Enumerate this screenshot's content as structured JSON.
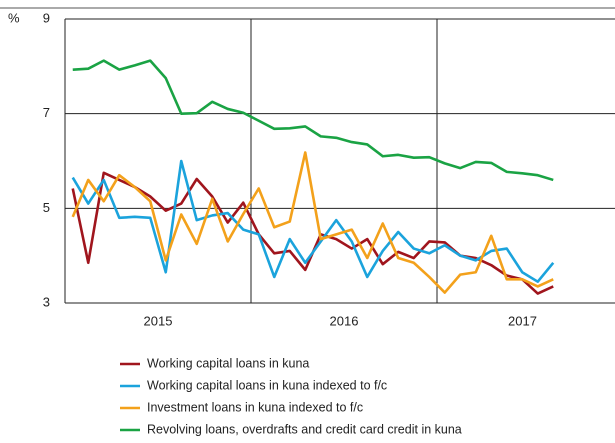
{
  "chart_data": {
    "type": "line",
    "unit_label": "%",
    "categories": [
      null,
      null,
      null,
      null,
      null,
      null,
      null,
      null,
      null,
      null,
      null,
      null,
      null,
      null,
      null,
      null,
      null,
      null,
      null,
      null,
      null,
      null,
      null,
      null,
      null,
      null,
      null,
      null,
      null,
      null,
      null,
      null
    ],
    "year_labels": [
      "2015",
      "2016",
      "2017"
    ],
    "ylim": [
      3,
      9
    ],
    "yticks": [
      3,
      5,
      7,
      9
    ],
    "grid": true,
    "series": [
      {
        "name": "Working capital loans in kuna",
        "color": "#a0151d",
        "values": [
          5.42,
          3.85,
          5.75,
          5.6,
          5.45,
          5.25,
          4.95,
          5.1,
          5.62,
          5.25,
          4.7,
          5.12,
          4.45,
          4.05,
          4.1,
          3.7,
          4.45,
          4.35,
          4.15,
          4.35,
          3.82,
          4.08,
          3.95,
          4.3,
          4.28,
          4.0,
          3.95,
          3.8,
          3.58,
          3.5,
          3.2,
          3.35
        ]
      },
      {
        "name": "Working capital loans in kuna indexed to f/c",
        "color": "#1ba3dc",
        "values": [
          5.65,
          5.1,
          5.6,
          4.8,
          4.82,
          4.8,
          3.65,
          6.0,
          4.75,
          4.85,
          4.9,
          4.55,
          4.45,
          3.55,
          4.35,
          3.85,
          4.3,
          4.75,
          4.3,
          3.55,
          4.1,
          4.5,
          4.15,
          4.05,
          4.22,
          4.0,
          3.9,
          4.1,
          4.15,
          3.65,
          3.45,
          3.85
        ]
      },
      {
        "name": "Investment loans in kuna indexed to f/c",
        "color": "#f3a11b",
        "values": [
          4.82,
          5.6,
          5.15,
          5.7,
          5.45,
          5.15,
          3.9,
          4.87,
          4.25,
          5.2,
          4.3,
          4.88,
          5.42,
          4.6,
          4.72,
          6.18,
          4.35,
          4.45,
          4.55,
          3.95,
          4.68,
          3.95,
          3.85,
          3.55,
          3.22,
          3.6,
          3.65,
          4.42,
          3.5,
          3.5,
          3.35,
          3.5
        ]
      },
      {
        "name": "Revolving loans, overdrafts and credit card credit in kuna",
        "color": "#1aa344",
        "values": [
          7.93,
          7.95,
          8.12,
          7.93,
          8.02,
          8.12,
          7.75,
          7.0,
          7.01,
          7.25,
          7.1,
          7.02,
          6.85,
          6.68,
          6.69,
          6.73,
          6.52,
          6.49,
          6.4,
          6.35,
          6.1,
          6.13,
          6.07,
          6.08,
          5.95,
          5.85,
          5.98,
          5.96,
          5.77,
          5.74,
          5.7,
          5.6
        ]
      }
    ]
  }
}
